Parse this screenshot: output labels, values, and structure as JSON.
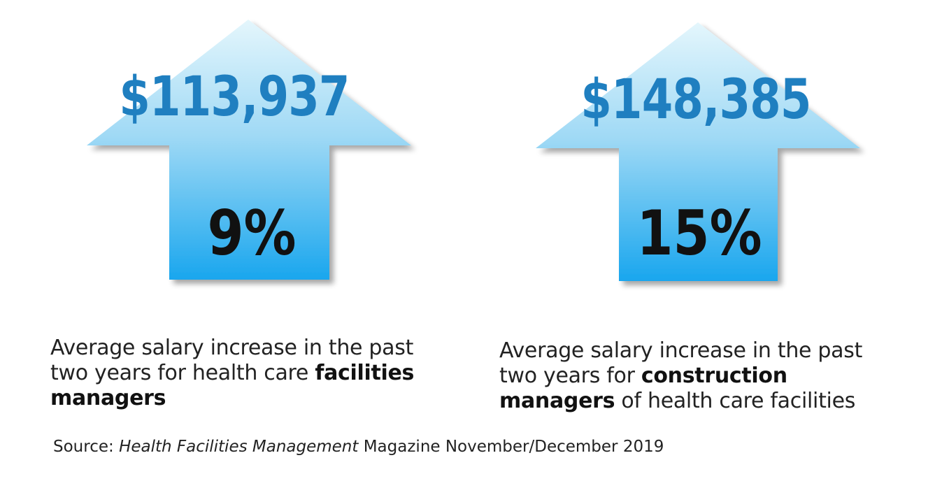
{
  "panels": [
    {
      "salary": "$113,937",
      "increase_percent": 9,
      "increase_label": "9%",
      "caption_line1": "Average salary increase in the past",
      "caption_line2_prefix": "two years for health care ",
      "caption_bold": "facilities",
      "caption_bold2": "managers",
      "caption_suffix": ""
    },
    {
      "salary": "$148,385",
      "increase_percent": 15,
      "increase_label": "15%",
      "caption_line1": "Average salary increase in the past",
      "caption_line2_prefix": "two years for ",
      "caption_bold": "construction",
      "caption_bold2": "managers",
      "caption_suffix": " of health care facilities"
    }
  ],
  "source": {
    "prefix": "Source: ",
    "publication": "Health Facilities Management",
    "suffix": " Magazine November/December 2019"
  },
  "colors": {
    "arrow_top": "#ddf3fb",
    "arrow_bottom": "#1ba7ee",
    "salary_text": "#1f7fc0",
    "percent_text": "#111111"
  },
  "icons": [
    "up-arrow-icon",
    "up-arrow-icon"
  ]
}
